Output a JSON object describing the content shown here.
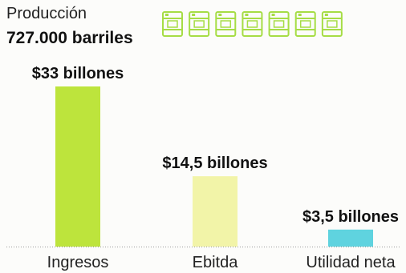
{
  "header": {
    "label": "Producción",
    "value": "727.000 barriles"
  },
  "barrel_icons": {
    "count": 7,
    "icon": "oil-barrel-icon",
    "color": "#a6dd45"
  },
  "chart_data": {
    "type": "bar",
    "categories": [
      "Ingresos",
      "Ebitda",
      "Utilidad neta"
    ],
    "values": [
      33,
      14.5,
      3.5
    ],
    "data_labels": [
      "$33 billones",
      "$14,5 billones",
      "$3,5 billones"
    ],
    "colors": [
      "#bde43c",
      "#f2f4a8",
      "#5fd3df"
    ],
    "title": "",
    "xlabel": "",
    "ylabel": "",
    "ylim": [
      0,
      33
    ],
    "grid": false,
    "legend": "none"
  }
}
